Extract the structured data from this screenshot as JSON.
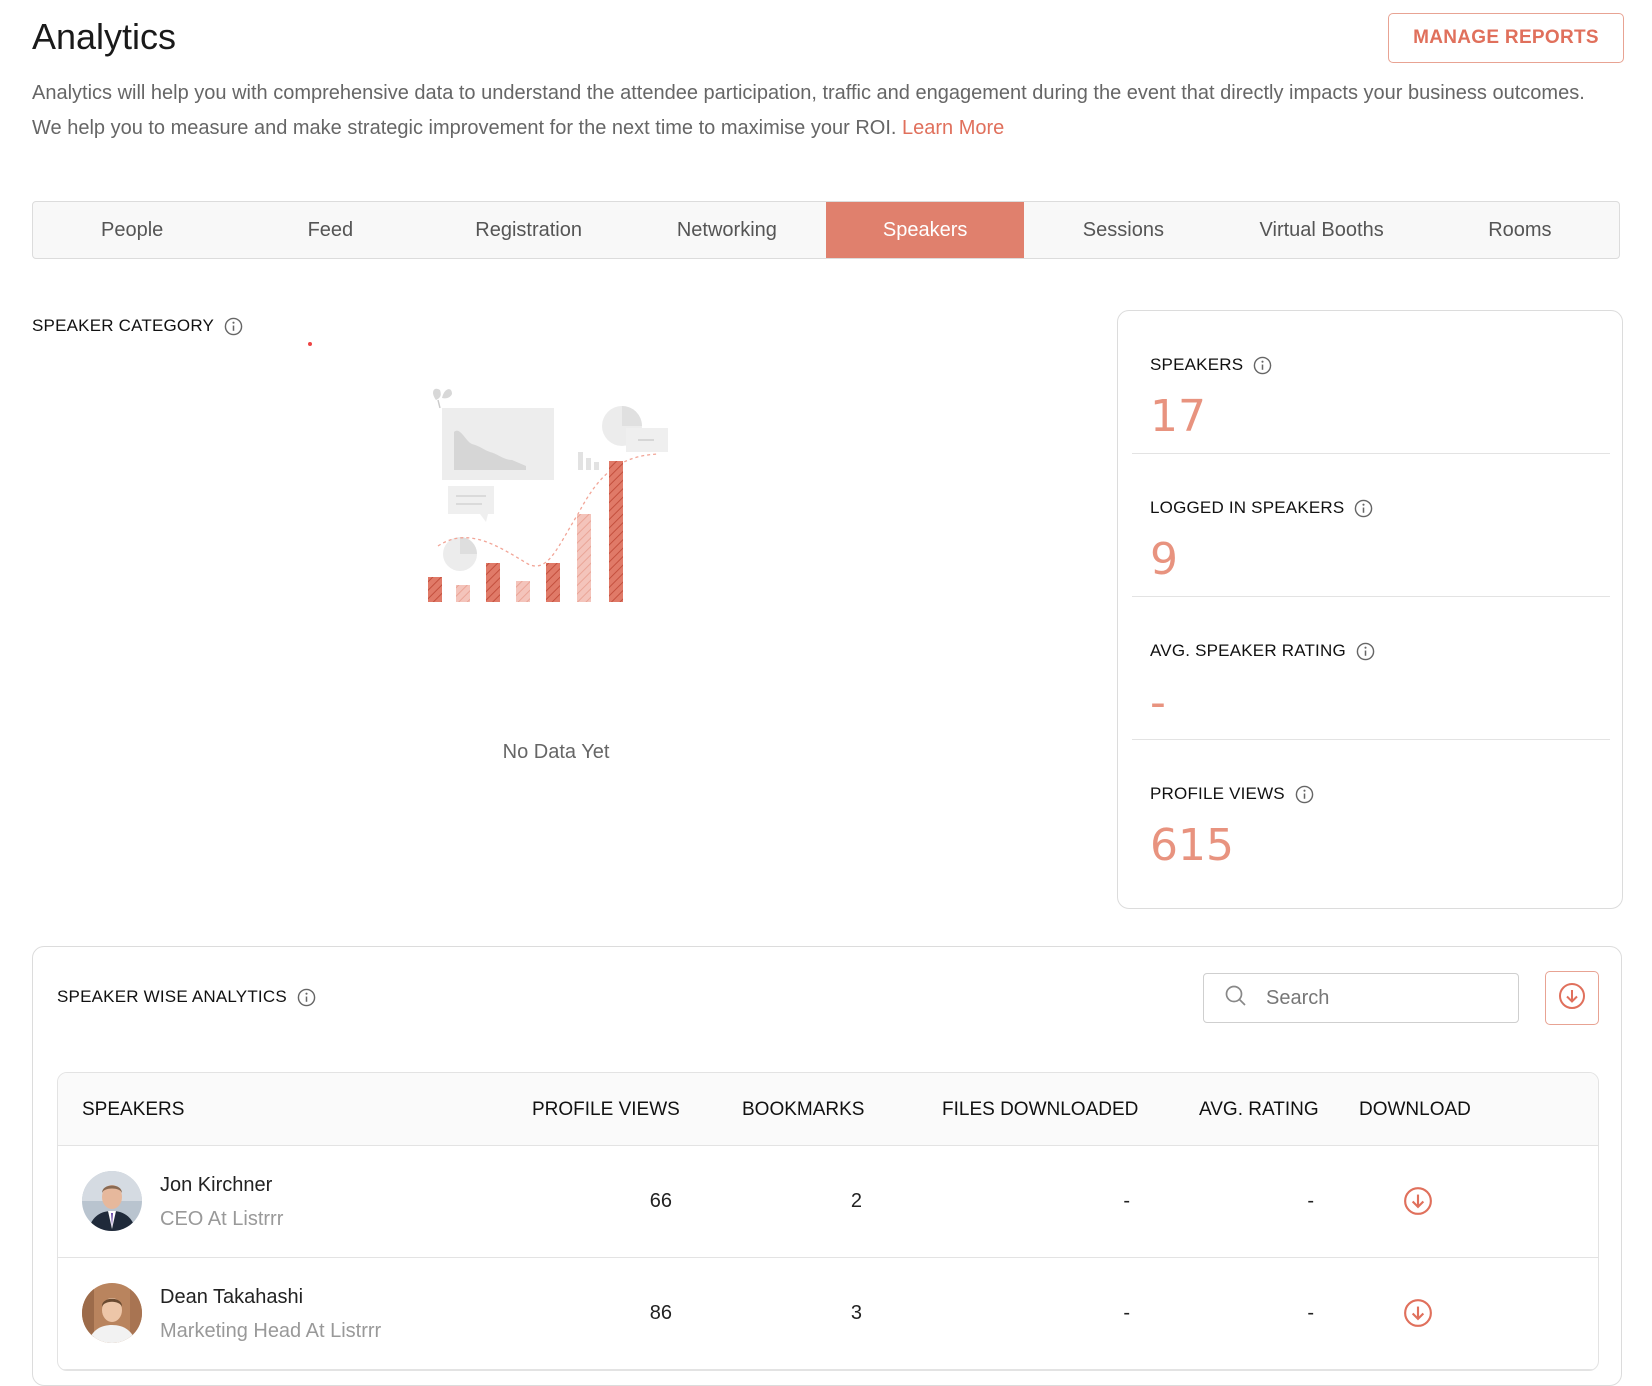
{
  "header": {
    "title": "Analytics",
    "manage_reports": "MANAGE REPORTS",
    "intro": "Analytics will help you with comprehensive data to understand the attendee participation, traffic and engagement during the event that directly impacts your business outcomes. We help you to measure and make strategic improvement for the next time to maximise your ROI.",
    "learn_more": "Learn More"
  },
  "tabs": [
    {
      "label": "People"
    },
    {
      "label": "Feed"
    },
    {
      "label": "Registration"
    },
    {
      "label": "Networking"
    },
    {
      "label": "Speakers",
      "active": true
    },
    {
      "label": "Sessions"
    },
    {
      "label": "Virtual Booths"
    },
    {
      "label": "Rooms"
    }
  ],
  "speaker_category": {
    "label": "SPEAKER CATEGORY",
    "empty_text": "No Data Yet"
  },
  "stats": [
    {
      "label": "SPEAKERS",
      "value": "17"
    },
    {
      "label": "LOGGED IN SPEAKERS",
      "value": "9"
    },
    {
      "label": "AVG. SPEAKER RATING",
      "value": "-"
    },
    {
      "label": "PROFILE VIEWS",
      "value": "615"
    }
  ],
  "speaker_wise": {
    "label": "SPEAKER WISE ANALYTICS",
    "search_placeholder": "Search",
    "columns": [
      "SPEAKERS",
      "PROFILE VIEWS",
      "BOOKMARKS",
      "FILES DOWNLOADED",
      "AVG. RATING",
      "DOWNLOAD"
    ],
    "rows": [
      {
        "name": "Jon Kirchner",
        "title": "CEO At Listrrr",
        "profile_views": "66",
        "bookmarks": "2",
        "files_downloaded": "-",
        "avg_rating": "-"
      },
      {
        "name": "Dean Takahashi",
        "title": "Marketing Head At Listrrr",
        "profile_views": "86",
        "bookmarks": "3",
        "files_downloaded": "-",
        "avg_rating": "-"
      }
    ]
  },
  "colors": {
    "accent": "#e0806d",
    "stat_value": "#e8937f",
    "text_muted": "#666666"
  }
}
